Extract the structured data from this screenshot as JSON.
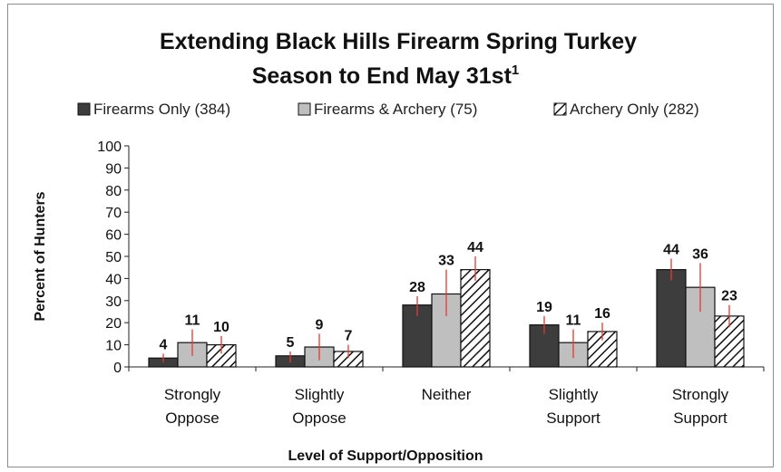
{
  "chart_data": {
    "type": "bar",
    "title_line1": "Extending Black Hills Firearm Spring Turkey",
    "title_line2": "Season to End May 31st",
    "title_superscript": "1",
    "xlabel": "Level of Support/Opposition",
    "ylabel": "Percent of Hunters",
    "ylim": [
      0,
      100
    ],
    "yticks": [
      0,
      10,
      20,
      30,
      40,
      50,
      60,
      70,
      80,
      90,
      100
    ],
    "grid": false,
    "legend_position": "top",
    "categories": [
      [
        "Strongly",
        "Oppose"
      ],
      [
        "Slightly",
        "Oppose"
      ],
      [
        "Neither"
      ],
      [
        "Slightly",
        "Support"
      ],
      [
        "Strongly",
        "Support"
      ]
    ],
    "series": [
      {
        "name": "Firearms Only (384)",
        "fill": "#3d3d3d",
        "pattern": "solid",
        "values": [
          4,
          5,
          28,
          19,
          44
        ],
        "error_low": [
          2,
          2,
          23,
          15,
          39
        ],
        "error_high": [
          6,
          7,
          32,
          23,
          49
        ]
      },
      {
        "name": "Firearms & Archery (75)",
        "fill": "#bfbfbf",
        "pattern": "solid",
        "values": [
          11,
          9,
          33,
          11,
          36
        ],
        "error_low": [
          5,
          3,
          23,
          4,
          25
        ],
        "error_high": [
          17,
          15,
          44,
          17,
          47
        ]
      },
      {
        "name": "Archery Only (282)",
        "fill": "#ffffff",
        "pattern": "hatch",
        "values": [
          10,
          7,
          44,
          16,
          23
        ],
        "error_low": [
          6,
          4,
          39,
          12,
          18
        ],
        "error_high": [
          14,
          10,
          50,
          20,
          28
        ]
      }
    ],
    "error_bar_color": "#e8382f"
  }
}
